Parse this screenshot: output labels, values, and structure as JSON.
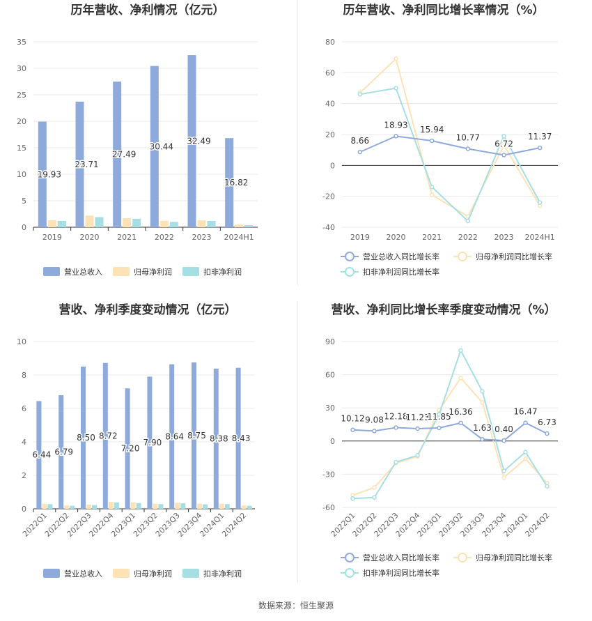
{
  "footer": "数据来源：恒生聚源",
  "colors": {
    "revenue": "#8eaadb",
    "profit": "#fde2b6",
    "deducted": "#a6dfe3",
    "grid": "#e8e8e8",
    "axis": "#333333"
  },
  "chart_data": [
    {
      "type": "bar",
      "title": "历年营收、净利情况（亿元）",
      "categories": [
        "2019",
        "2020",
        "2021",
        "2022",
        "2023",
        "2024H1"
      ],
      "ylim": [
        0,
        35
      ],
      "yticks": [
        0,
        5,
        10,
        15,
        20,
        25,
        30,
        35
      ],
      "series": [
        {
          "name": "营业总收入",
          "values": [
            19.93,
            23.71,
            27.49,
            30.44,
            32.49,
            16.82
          ],
          "labels": [
            "19.93",
            "23.71",
            "27.49",
            "30.44",
            "32.49",
            "16.82"
          ]
        },
        {
          "name": "归母净利润",
          "values": [
            1.3,
            2.2,
            1.7,
            1.2,
            1.3,
            0.5
          ]
        },
        {
          "name": "扣非净利润",
          "values": [
            1.2,
            1.9,
            1.6,
            1.0,
            1.2,
            0.4
          ]
        }
      ],
      "legend": "bottom"
    },
    {
      "type": "line",
      "title": "历年营收、净利同比增长率情况（%）",
      "categories": [
        "2019",
        "2020",
        "2021",
        "2022",
        "2023",
        "2024H1"
      ],
      "ylim": [
        -40,
        80
      ],
      "yticks": [
        -40,
        -20,
        0,
        20,
        40,
        60,
        80
      ],
      "series": [
        {
          "name": "营业总收入同比增长率",
          "values": [
            8.66,
            18.93,
            15.94,
            10.77,
            6.72,
            11.37
          ],
          "labels": [
            "8.66",
            "18.93",
            "15.94",
            "10.77",
            "6.72",
            "11.37"
          ]
        },
        {
          "name": "归母净利润同比增长率",
          "values": [
            47,
            69,
            -19,
            -33,
            13,
            -26
          ]
        },
        {
          "name": "扣非净利润同比增长率",
          "values": [
            46,
            50,
            -14,
            -36,
            19,
            -24
          ]
        }
      ],
      "legend": "bottom"
    },
    {
      "type": "bar",
      "title": "营收、净利季度变动情况（亿元）",
      "categories": [
        "2022Q1",
        "2022Q2",
        "2022Q3",
        "2022Q4",
        "2023Q1",
        "2023Q2",
        "2023Q3",
        "2023Q4",
        "2024Q1",
        "2024Q2"
      ],
      "ylim": [
        0,
        10
      ],
      "yticks": [
        0,
        2,
        4,
        6,
        8,
        10
      ],
      "series": [
        {
          "name": "营业总收入",
          "values": [
            6.44,
            6.79,
            8.5,
            8.72,
            7.2,
            7.9,
            8.64,
            8.75,
            8.38,
            8.43
          ],
          "labels": [
            "6.44",
            "6.79",
            "8.50",
            "8.72",
            "7.20",
            "7.90",
            "8.64",
            "8.75",
            "8.38",
            "8.43"
          ]
        },
        {
          "name": "归母净利润",
          "values": [
            0.3,
            0.2,
            0.25,
            0.42,
            0.38,
            0.3,
            0.35,
            0.3,
            0.3,
            0.2
          ]
        },
        {
          "name": "扣非净利润",
          "values": [
            0.28,
            0.18,
            0.22,
            0.38,
            0.34,
            0.28,
            0.33,
            0.27,
            0.28,
            0.18
          ]
        }
      ],
      "legend": "bottom"
    },
    {
      "type": "line",
      "title": "营收、净利同比增长率季度变动情况（%）",
      "categories": [
        "2022Q1",
        "2022Q2",
        "2022Q3",
        "2022Q4",
        "2023Q1",
        "2023Q2",
        "2023Q3",
        "2023Q4",
        "2024Q1",
        "2024Q2"
      ],
      "ylim": [
        -60,
        90
      ],
      "yticks": [
        -60,
        -30,
        0,
        30,
        60,
        90
      ],
      "series": [
        {
          "name": "营业总收入同比增长率",
          "values": [
            10.12,
            9.08,
            12.18,
            11.23,
            11.85,
            16.36,
            1.63,
            0.4,
            16.47,
            6.73
          ],
          "labels": [
            "10.12",
            "9.08",
            "12.18",
            "11.23",
            "11.85",
            "16.36",
            "1.63",
            "0.40",
            "16.47",
            "6.73"
          ]
        },
        {
          "name": "归母净利润同比增长率",
          "values": [
            -49,
            -42,
            -20,
            -14,
            28,
            57,
            35,
            -33,
            -16,
            -38
          ]
        },
        {
          "name": "扣非净利润同比增长率",
          "values": [
            -52,
            -51,
            -19,
            -13,
            24,
            82,
            45,
            -27,
            -10,
            -41
          ]
        }
      ],
      "legend": "bottom"
    }
  ]
}
